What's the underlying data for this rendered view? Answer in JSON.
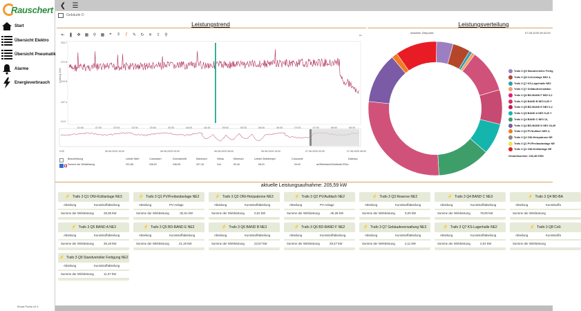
{
  "app": {
    "logo_text": "Rauschert",
    "version": "Smart Portal v0.3",
    "breadcrumb": "Gebäude D"
  },
  "sidebar": {
    "items": [
      {
        "label": "Start",
        "icon": "home-icon"
      },
      {
        "label": "Übersicht Elektro",
        "icon": "list-icon"
      },
      {
        "label": "Übersicht Pneumatik",
        "icon": "list-icon"
      },
      {
        "label": "Alarme",
        "icon": "bell-icon"
      },
      {
        "label": "Energieverbrauch",
        "icon": "lightning-icon"
      }
    ]
  },
  "trend": {
    "title": "Leistungstrend",
    "y_ticks": [
      "334.7",
      "272.8",
      "210.8",
      "167.4",
      "24.9"
    ],
    "y_axis_label": "Leistung (kW)",
    "x_ticks": [
      "01:00",
      "01:30",
      "02:00",
      "02:30",
      "03:00",
      "03:30",
      "04:00",
      "04:30",
      "05:00",
      "05:30",
      "06:00",
      "06:30",
      "07:00",
      "07:30",
      "08:00",
      "08:30"
    ],
    "overview_ticks": [
      "0:00",
      "06.08.2025 16:00",
      "06.08.2025 00:00",
      "06.08.2025 08:00",
      "06.08.2025 16:00",
      "07.08.2025 00:00",
      "07.08.2025 08:00"
    ],
    "legend_headers": [
      "Beschreibung",
      "Letzter Wert",
      "Cursorwert",
      "Durchschnitt",
      "Maximum",
      "Verlau",
      "Minimum",
      "Letzter Zeitstempel",
      "Cursorzeit",
      "Datenpu"
    ],
    "legend_row": [
      "Summe der Wirkleistung",
      "201,56",
      "246,51",
      "246,05",
      "327,16",
      "Gut",
      "52,40",
      "08:41",
      "04:42",
      "ac/Steinbach/Gebäude D/Sur"
    ]
  },
  "distribution": {
    "title": "Leistungsverteilung",
    "header_left": "Aktueller Zeitpunkt:",
    "header_right": "07.08.2025 08:42:00",
    "total": "Gesamtsumme: 246,48 KWh",
    "legend": [
      {
        "label": "Trafo 3 Q9 Standverteiler Fertig",
        "color": "#9b7fc2"
      },
      {
        "label": "Trafo 3 Q8 Coll-Anlage NE2 4,",
        "color": "#b4472a"
      },
      {
        "label": "Trafo 3 Q7 KS-Lagerhalle NE2",
        "color": "#2c9fb5"
      },
      {
        "label": "Trafo 3 Q7 Gebäudeverwaltun",
        "color": "#f5a060"
      },
      {
        "label": "Trafo 3 Q6 BD-BAND F NE2 6,2",
        "color": "#e6197a"
      },
      {
        "label": "Trafo 3 Q6 BAND B NE3 6,05 Y",
        "color": "#d2335a"
      },
      {
        "label": "Trafo 3 Q5 BD-BAND E NE2 6,2",
        "color": "#c2185b"
      },
      {
        "label": "Trafo 3 Q5 BAND A NE3 5,43 Y",
        "color": "#14b5ad"
      },
      {
        "label": "Trafo 3 Q4 BAND C NE3 13,",
        "color": "#3e9e6a"
      },
      {
        "label": "Trafo 3 Q4 BD-BAND D NE2 34,49",
        "color": "#7b5aa6"
      },
      {
        "label": "Trafo 3 Q3 PV/Auflach NE2 4,",
        "color": "#f47b20"
      },
      {
        "label": "Trafo 3 Q2 ONI-Heizpatrone NE",
        "color": "#888888"
      },
      {
        "label": "Trafo 3 Q1 PV/Freilandanlage NE",
        "color": "#e8e84a"
      },
      {
        "label": "Trafo 3 Q1 ONI-Kühlanlage NE",
        "color": "#e81c24"
      }
    ]
  },
  "current": {
    "title": "aktuelle Leistungsaufnahme: 205,59 kW",
    "row_labels": {
      "abteilung": "Abteilung",
      "summe": "Summe der Wirkleistung"
    },
    "cards": [
      {
        "title": "Trafo 3 Q1 ONI-Kühlanlage NE3",
        "abteilung": "Kunststoffabteilung",
        "value": "28,35 kW"
      },
      {
        "title": "Trafo 3 Q1 PV/Freilandanlage NE2",
        "abteilung": "PV-Anlage",
        "value": "-32,51 kW"
      },
      {
        "title": "Trafo 3 Q2 ONI-Heizpatrone NE3",
        "abteilung": "Kunststoffabteilung",
        "value": "0,02 kW"
      },
      {
        "title": "Trafo 3 Q2 PV/Aufdach NE2",
        "abteilung": "PV-Anlage",
        "value": "-40,28 kW"
      },
      {
        "title": "Trafo 3 Q3 Reserve NE2",
        "abteilung": "Kunststoffabteilung",
        "value": "0,00 kW"
      },
      {
        "title": "Trafo 3 Q4 BAND C NE3",
        "abteilung": "Kunststoffabteilung",
        "value": "78,00 kW"
      },
      {
        "title": "Trafo 3 Q4 BD-BA",
        "abteilung": "Kunststoffa",
        "value": ""
      },
      {
        "title": "Trafo 3 Q5 BAND A NE3",
        "abteilung": "Kunststoffabteilung",
        "value": "36,18 kW"
      },
      {
        "title": "Trafo 3 Q5 BD-BAND E NE2",
        "abteilung": "Kunststoffabteilung",
        "value": "21,19 kW"
      },
      {
        "title": "Trafo 3 Q6 BAND B NE3",
        "abteilung": "Kunststoffabteilung",
        "value": "23,57 kW"
      },
      {
        "title": "Trafo 3 Q6 BD-BAND F NE2",
        "abteilung": "Kunststoffabteilung",
        "value": "29,47 kW"
      },
      {
        "title": "Trafo 3 Q7 Gebäudeverwaltung NE3",
        "abteilung": "Kunststoffabteilung",
        "value": "2,11 kW"
      },
      {
        "title": "Trafo 3 Q7 KS-Lagerhalle NE2",
        "abteilung": "Kunststoffabteilung",
        "value": "2,04 kW"
      },
      {
        "title": "Trafo 3 Q8 Coll-",
        "abteilung": "Kunststoffa",
        "value": ""
      },
      {
        "title": "Trafo 3 Q9 Standverteiler Fertigung NE2",
        "abteilung": "Kunststoffabteilung",
        "value": "11,37 kW"
      }
    ]
  },
  "chart_data": {
    "type": "pie",
    "title": "Leistungsverteilung",
    "categories": [
      "Q9 Standverteiler",
      "Q8 Coll-Anlage",
      "Q7 KS-Lagerhalle",
      "Q7 Gebäudeverwaltung",
      "Q6 BD-BAND F",
      "Q6 BAND B",
      "Q5 BD-BAND E",
      "Q5 BAND A",
      "Q4 BAND C",
      "Q4 BD-BAND D",
      "Q3 PV/Aufdach",
      "Q1 ONI-Kühlanlage"
    ],
    "values": [
      11.37,
      12,
      2.04,
      2.11,
      29.47,
      23.57,
      21.19,
      36.18,
      78.0,
      34.49,
      4,
      28.35
    ],
    "colors": [
      "#9b7fc2",
      "#b4472a",
      "#2c9fb5",
      "#f5a060",
      "#d0527a",
      "#c74a72",
      "#14b5ad",
      "#3e9e6a",
      "#d0527a",
      "#7b5aa6",
      "#f47b20",
      "#e81c24"
    ]
  }
}
